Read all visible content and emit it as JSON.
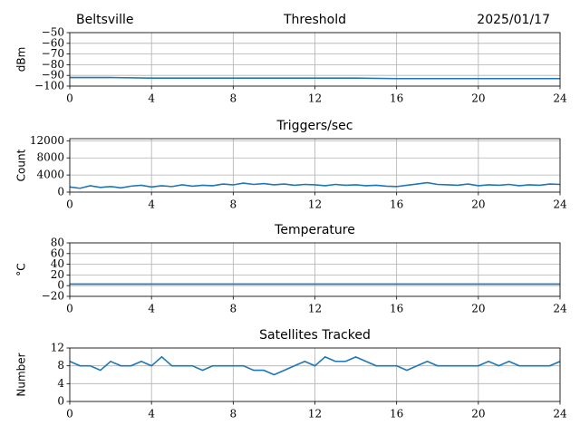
{
  "chart_data": [
    {
      "type": "line",
      "location": "Beltsville",
      "title": "Threshold",
      "date": "2025/01/17",
      "ylabel": "dBm",
      "x": [
        0,
        2,
        4,
        6,
        8,
        10,
        12,
        14,
        16,
        18,
        20,
        22,
        24
      ],
      "series": [
        {
          "color": "#1f77b4",
          "values": [
            -92,
            -92,
            -92.5,
            -92.5,
            -92.5,
            -92.5,
            -92.5,
            -92.5,
            -93,
            -93,
            -93,
            -93,
            -93
          ]
        }
      ],
      "xlim": [
        0,
        24
      ],
      "xticks": [
        0,
        4,
        8,
        12,
        16,
        20,
        24
      ],
      "ylim": [
        -100,
        -50
      ],
      "yticks": [
        {
          "value": -100,
          "label": "−100"
        },
        {
          "value": -90,
          "label": "−90"
        },
        {
          "value": -80,
          "label": "−80"
        },
        {
          "value": -70,
          "label": "−70"
        },
        {
          "value": -60,
          "label": "−60"
        },
        {
          "value": -50,
          "label": "−50"
        }
      ],
      "grid": true
    },
    {
      "type": "line",
      "title": "Triggers/sec",
      "ylabel": "Count",
      "x": [
        0,
        0.5,
        1,
        1.5,
        2,
        2.5,
        3,
        3.5,
        4,
        4.5,
        5,
        5.5,
        6,
        6.5,
        7,
        7.5,
        8,
        8.5,
        9,
        9.5,
        10,
        10.5,
        11,
        11.5,
        12,
        12.5,
        13,
        13.5,
        14,
        14.5,
        15,
        15.5,
        16,
        16.5,
        17,
        17.5,
        18,
        18.5,
        19,
        19.5,
        20,
        20.5,
        21,
        21.5,
        22,
        22.5,
        23,
        23.5,
        24
      ],
      "series": [
        {
          "color": "#1f77b4",
          "values": [
            1200,
            900,
            1500,
            1100,
            1300,
            1000,
            1400,
            1600,
            1200,
            1500,
            1300,
            1700,
            1400,
            1600,
            1500,
            1900,
            1700,
            2100,
            1800,
            2000,
            1700,
            1900,
            1600,
            1800,
            1700,
            1500,
            1800,
            1600,
            1700,
            1500,
            1600,
            1400,
            1300,
            1600,
            1900,
            2200,
            1800,
            1700,
            1600,
            1900,
            1500,
            1700,
            1600,
            1800,
            1500,
            1700,
            1600,
            1900,
            1800
          ]
        }
      ],
      "xlim": [
        0,
        24
      ],
      "xticks": [
        0,
        4,
        8,
        12,
        16,
        20,
        24
      ],
      "ylim": [
        0,
        12500
      ],
      "yticks": [
        0,
        4000,
        8000,
        12000
      ],
      "grid": true
    },
    {
      "type": "line",
      "title": "Temperature",
      "ylabel": "°C",
      "x": [
        0,
        2,
        4,
        6,
        8,
        10,
        12,
        14,
        16,
        18,
        20,
        22,
        24
      ],
      "series": [
        {
          "color": "#1f77b4",
          "values": [
            3,
            3,
            3,
            3,
            3,
            3,
            3,
            3,
            3,
            3,
            3,
            3,
            3
          ]
        }
      ],
      "xlim": [
        0,
        24
      ],
      "xticks": [
        0,
        4,
        8,
        12,
        16,
        20,
        24
      ],
      "ylim": [
        -20,
        80
      ],
      "yticks": [
        {
          "value": -20,
          "label": "−20"
        },
        0,
        20,
        40,
        60,
        80
      ],
      "grid": true
    },
    {
      "type": "line",
      "title": "Satellites Tracked",
      "ylabel": "Number",
      "x": [
        0,
        0.5,
        1,
        1.5,
        2,
        2.5,
        3,
        3.5,
        4,
        4.5,
        5,
        5.5,
        6,
        6.5,
        7,
        7.5,
        8,
        8.5,
        9,
        9.5,
        10,
        10.5,
        11,
        11.5,
        12,
        12.5,
        13,
        13.5,
        14,
        14.5,
        15,
        15.5,
        16,
        16.5,
        17,
        17.5,
        18,
        18.5,
        19,
        19.5,
        20,
        20.5,
        21,
        21.5,
        22,
        22.5,
        23,
        23.5,
        24
      ],
      "series": [
        {
          "color": "#1f77b4",
          "values": [
            9,
            8,
            8,
            7,
            9,
            8,
            8,
            9,
            8,
            10,
            8,
            8,
            8,
            7,
            8,
            8,
            8,
            8,
            7,
            7,
            6,
            7,
            8,
            9,
            8,
            10,
            9,
            9,
            10,
            9,
            8,
            8,
            8,
            7,
            8,
            9,
            8,
            8,
            8,
            8,
            8,
            9,
            8,
            9,
            8,
            8,
            8,
            8,
            9
          ]
        }
      ],
      "xlim": [
        0,
        24
      ],
      "xticks": [
        0,
        4,
        8,
        12,
        16,
        20,
        24
      ],
      "ylim": [
        0,
        12
      ],
      "yticks": [
        0,
        4,
        8,
        12
      ],
      "grid": true
    }
  ]
}
